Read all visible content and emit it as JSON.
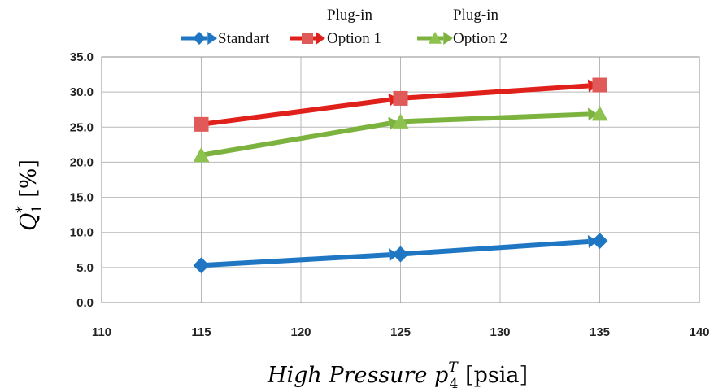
{
  "chart_data": {
    "type": "line",
    "title": "",
    "xlabel": {
      "main": "High Pressure ",
      "symbol": "p",
      "subscript": "4",
      "superscript": "T",
      "unit": " [psia]"
    },
    "ylabel": {
      "symbol": "Q",
      "subscript": "1",
      "superscript": "*",
      "unit": " [%]"
    },
    "xlim": [
      110,
      140
    ],
    "ylim": [
      0,
      35
    ],
    "xticks": [
      "110",
      "115",
      "120",
      "125",
      "130",
      "135",
      "140"
    ],
    "yticks": [
      "0.0",
      "5.0",
      "10.0",
      "15.0",
      "20.0",
      "25.0",
      "30.0",
      "35.0"
    ],
    "grid": true,
    "legend_position": "top",
    "series": [
      {
        "name": "Standart",
        "legend_lines": [
          "Standart"
        ],
        "color": "#1f77c4",
        "marker": "diamond",
        "x": [
          115,
          125,
          135
        ],
        "y": [
          5.3,
          6.9,
          8.8
        ]
      },
      {
        "name": "Plug-in Option 1",
        "legend_lines": [
          "Plug-in",
          "Option 1"
        ],
        "color": "#e0201b",
        "marker_color": "#e05a5a",
        "marker": "square",
        "x": [
          115,
          125,
          135
        ],
        "y": [
          25.4,
          29.1,
          31.0
        ]
      },
      {
        "name": "Plug-in Option 2",
        "legend_lines": [
          "Plug-in",
          "Option 2"
        ],
        "color": "#7cb33f",
        "marker_color": "#8dc24f",
        "marker": "triangle",
        "x": [
          115,
          125,
          135
        ],
        "y": [
          21.0,
          25.8,
          26.9
        ]
      }
    ]
  }
}
